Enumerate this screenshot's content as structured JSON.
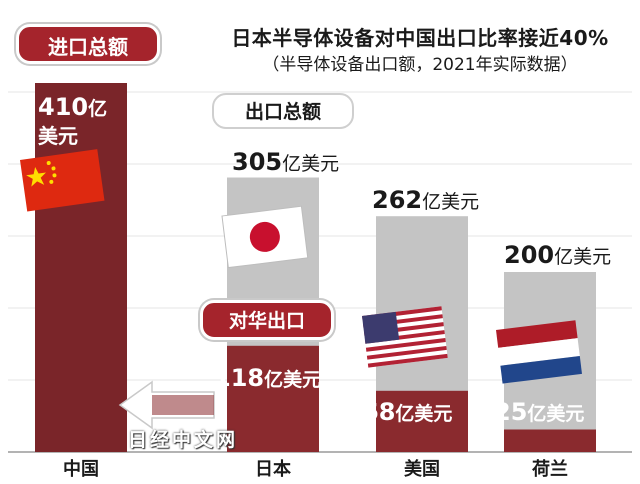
{
  "header": {
    "title": "日本半导体设备对中国出口比率接近40%",
    "subtitle": "（半导体设备出口额，2021年实际数据）"
  },
  "labels": {
    "import_total": "进口总额",
    "export_total": "出口总额",
    "export_to_china": "对华出口",
    "watermark": "日经中文网"
  },
  "chart_data": {
    "type": "bar",
    "title": "日本半导体设备对中国出口比率接近40%",
    "subtitle": "（半导体设备出口额，2021年实际数据）",
    "unit": "亿美元",
    "categories": [
      "中国",
      "日本",
      "美国",
      "荷兰"
    ],
    "series": [
      {
        "name": "出口总额",
        "values": [
          410,
          305,
          262,
          200
        ]
      },
      {
        "name": "对华出口",
        "values": [
          null,
          118,
          68,
          25
        ]
      }
    ],
    "ylim": [
      0,
      440
    ],
    "grid": true,
    "colors": {
      "total": "#c4c4c4",
      "china": "#8a2a2e",
      "china_total": "#7a2529",
      "accent": "#a5242c"
    }
  },
  "display": {
    "china_total": {
      "num": "410",
      "unit": "亿",
      "unit2": "美元"
    },
    "japan_total": {
      "num": "305",
      "unit": "亿美元"
    },
    "us_total": {
      "num": "262",
      "unit": "亿美元"
    },
    "nl_total": {
      "num": "200",
      "unit": "亿美元"
    },
    "japan_china": {
      "num": "118",
      "unit": "亿美元"
    },
    "us_china": {
      "num": "68",
      "unit": "亿美元"
    },
    "nl_china": {
      "num": "25",
      "unit": "亿美元"
    }
  },
  "flags": [
    "china-flag-icon",
    "japan-flag-icon",
    "usa-flag-icon",
    "netherlands-flag-icon"
  ]
}
